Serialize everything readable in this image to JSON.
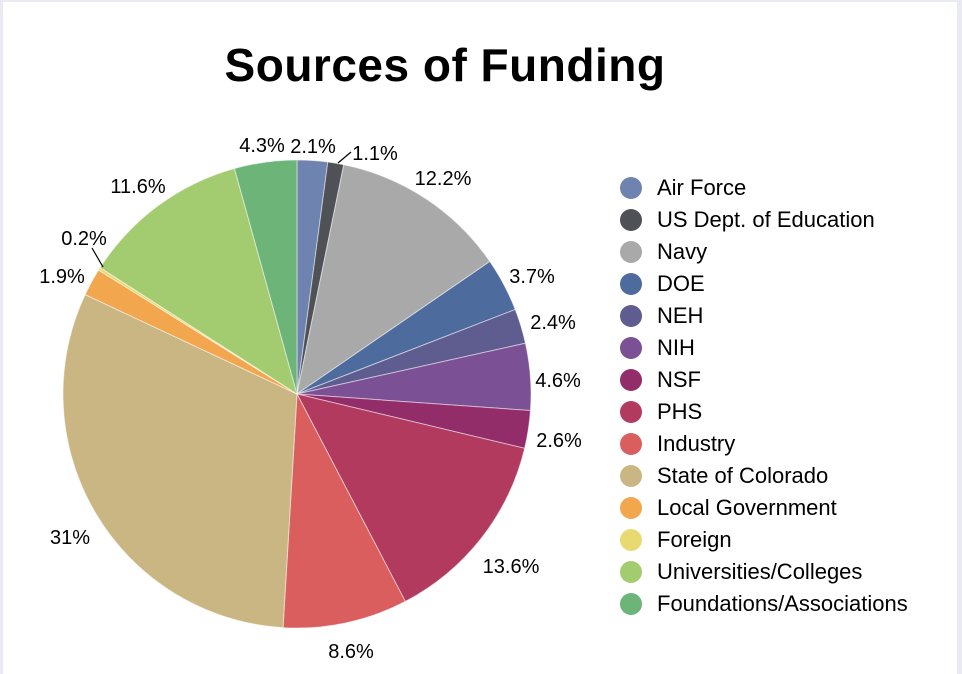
{
  "title": "Sources of Funding",
  "frame_color": "#e9eaf2",
  "background": "#ffffff",
  "chart_data": {
    "type": "pie",
    "title": "Sources of Funding",
    "legend_position": "right",
    "start_angle_deg": 0,
    "direction": "clockwise",
    "slices": [
      {
        "name": "Air Force",
        "value": 2.1,
        "label": "2.1%",
        "color": "#6f83b0"
      },
      {
        "name": "US Dept. of Education",
        "value": 1.1,
        "label": "1.1%",
        "color": "#4e5156"
      },
      {
        "name": "Navy",
        "value": 12.2,
        "label": "12.2%",
        "color": "#a9a9a9"
      },
      {
        "name": "DOE",
        "value": 3.7,
        "label": "3.7%",
        "color": "#4e6b9d"
      },
      {
        "name": "NEH",
        "value": 2.4,
        "label": "2.4%",
        "color": "#5f5c90"
      },
      {
        "name": "NIH",
        "value": 4.6,
        "label": "4.6%",
        "color": "#7b5094"
      },
      {
        "name": "NSF",
        "value": 2.6,
        "label": "2.6%",
        "color": "#922d69"
      },
      {
        "name": "PHS",
        "value": 13.6,
        "label": "13.6%",
        "color": "#b23a5f"
      },
      {
        "name": "Industry",
        "value": 8.6,
        "label": "8.6%",
        "color": "#d95e5d"
      },
      {
        "name": "State of Colorado",
        "value": 31,
        "label": "31%",
        "color": "#c9b682"
      },
      {
        "name": "Local Government",
        "value": 1.9,
        "label": "1.9%",
        "color": "#f2a74e"
      },
      {
        "name": "Foreign",
        "value": 0.2,
        "label": "0.2%",
        "color": "#e9d971"
      },
      {
        "name": "Universities/Colleges",
        "value": 11.6,
        "label": "11.6%",
        "color": "#a3cb70"
      },
      {
        "name": "Foundations/Associations",
        "value": 4.3,
        "label": "4.3%",
        "color": "#6cb478"
      }
    ]
  }
}
